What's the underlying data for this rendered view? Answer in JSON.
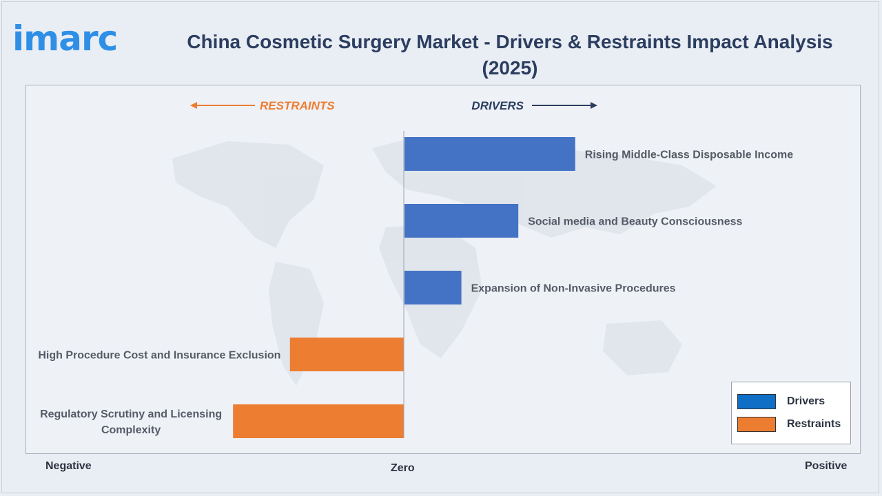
{
  "brand": {
    "name": "imarc"
  },
  "header": {
    "title": "China Cosmetic Surgery Market - Drivers & Restraints Impact Analysis (2025)"
  },
  "direction": {
    "restraints": "RESTRAINTS",
    "drivers": "DRIVERS"
  },
  "axis_words": {
    "negative": "Negative",
    "zero": "Zero",
    "positive": "Positive"
  },
  "colors": {
    "drivers": "#4472c4",
    "restraints": "#ed7d31",
    "title": "#2b3d5f",
    "logo": "#2f8fe6"
  },
  "legend": [
    {
      "label": "Drivers",
      "color": "#0f6fc6"
    },
    {
      "label": "Restraints",
      "color": "#ed7d31"
    }
  ],
  "chart_data": {
    "type": "bar",
    "orientation": "horizontal",
    "title": "China Cosmetic Surgery Market - Drivers & Restraints Impact Analysis (2025)",
    "xlim": [
      -1,
      1
    ],
    "grid": false,
    "legend_position": "bottom-right",
    "categories": [
      [
        "Rising Middle-Class Disposable Income"
      ],
      [
        "Social media and Beauty Consciousness"
      ],
      [
        "Expansion of Non-Invasive Procedures"
      ],
      [
        "High Procedure Cost and Insurance Exclusion"
      ],
      [
        "Regulatory Scrutiny and Licensing",
        "Complexity"
      ]
    ],
    "series": [
      {
        "name": "Drivers",
        "values": [
          0.42,
          0.28,
          0.14,
          null,
          null
        ]
      },
      {
        "name": "Restraints",
        "values": [
          null,
          null,
          null,
          -0.28,
          -0.42
        ]
      }
    ]
  }
}
